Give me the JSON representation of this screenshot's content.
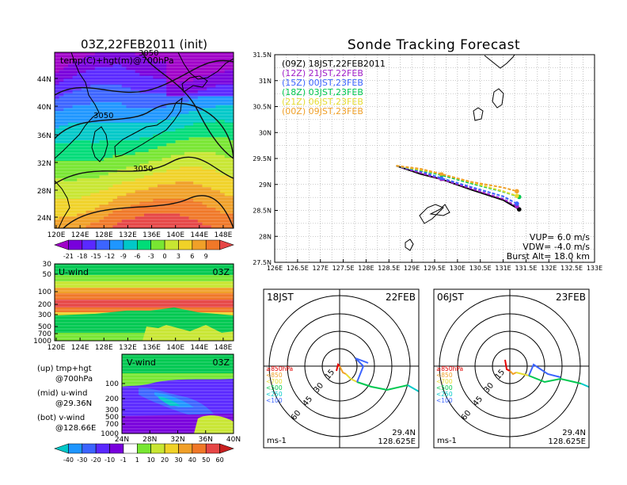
{
  "left": {
    "title": "03Z,22FEB2011 (init)",
    "map_label": "temp(C)+hgt(m)@700hPa",
    "map_height_contours": [
      "3050",
      "3050",
      "3050"
    ],
    "map_lat_ticks": [
      "44N",
      "40N",
      "36N",
      "32N",
      "28N",
      "24N"
    ],
    "map_lon_ticks": [
      "120E",
      "124E",
      "128E",
      "132E",
      "136E",
      "140E",
      "144E",
      "148E"
    ],
    "temp_colorbar": {
      "labels": [
        "-21",
        "-18",
        "-15",
        "-12",
        "-9",
        "-6",
        "-3",
        "0",
        "3",
        "6",
        "9"
      ],
      "colors": [
        "#a000c8",
        "#7800dc",
        "#5a28ff",
        "#3c64ff",
        "#1e96ff",
        "#00c8c8",
        "#00dc78",
        "#78e632",
        "#c8e632",
        "#f0d228",
        "#f0a028",
        "#f07828",
        "#e64646"
      ]
    },
    "uwind": {
      "label": "U-wind",
      "time": "03Z",
      "y_ticks": [
        "30",
        "50",
        "100",
        "200",
        "300",
        "500",
        "700",
        "1000"
      ],
      "x_ticks": [
        "120E",
        "124E",
        "128E",
        "132E",
        "136E",
        "140E",
        "144E",
        "148E"
      ]
    },
    "vwind": {
      "label": "V-wind",
      "time": "03Z",
      "y_ticks": [
        "100",
        "200",
        "300",
        "500",
        "700",
        "1000"
      ],
      "x_ticks": [
        "24N",
        "28N",
        "32N",
        "36N",
        "40N"
      ]
    },
    "notes": {
      "up_1": "(up) tmp+hgt",
      "up_2": "@700hPa",
      "mid_1": "(mid) u-wind",
      "mid_2": "@29.36N",
      "bot_1": "(bot) v-wind",
      "bot_2": "@128.66E"
    },
    "wind_colorbar": {
      "labels": [
        "-40",
        "-30",
        "-20",
        "-10",
        "-1",
        "1",
        "10",
        "20",
        "30",
        "40",
        "50",
        "60"
      ],
      "colors": [
        "#00c8c8",
        "#1e96ff",
        "#3c64ff",
        "#5a28ff",
        "#7800dc",
        "#ffffff",
        "#78e632",
        "#c8e632",
        "#f0d228",
        "#f0a028",
        "#f07828",
        "#e64646",
        "#c81e1e"
      ]
    }
  },
  "tracking": {
    "title": "Sonde Tracking Forecast",
    "legend": [
      {
        "label": "(09Z) 18JST,22FEB2011",
        "color": "#000000"
      },
      {
        "label": "(12Z) 21JST,22FEB",
        "color": "#a020c8"
      },
      {
        "label": "(15Z) 00JST,23FEB",
        "color": "#3c64ff"
      },
      {
        "label": "(18Z) 03JST,23FEB",
        "color": "#00c850"
      },
      {
        "label": "(21Z) 06JST,23FEB",
        "color": "#e6dc32"
      },
      {
        "label": "(00Z) 09JST,23FEB",
        "color": "#f0a028"
      }
    ],
    "lat_ticks": [
      "31.5N",
      "31N",
      "30.5N",
      "30N",
      "29.5N",
      "29N",
      "28.5N",
      "28N",
      "27.5N"
    ],
    "lon_ticks": [
      "126E",
      "126.5E",
      "127E",
      "127.5E",
      "128E",
      "128.5E",
      "129E",
      "129.5E",
      "130E",
      "130.5E",
      "131E",
      "131.5E",
      "132E",
      "132.5E",
      "133E"
    ],
    "params": {
      "vup": "VUP= 6.0 m/s",
      "vdw": "VDW= -4.0 m/s",
      "burst": "Burst Alt= 18.0 km"
    }
  },
  "chart_data": {
    "type": "line",
    "xlabel": "",
    "ylabel": "",
    "xlim": [
      126,
      133
    ],
    "ylim": [
      27.5,
      31.5
    ],
    "series": [
      {
        "name": "(09Z) 18JST,22FEB2011",
        "points": [
          [
            128.66,
            29.36
          ],
          [
            129.2,
            29.2
          ],
          [
            129.65,
            29.1
          ],
          [
            130.3,
            28.9
          ],
          [
            131.0,
            28.7
          ],
          [
            131.35,
            28.52
          ]
        ]
      },
      {
        "name": "(12Z) 21JST,22FEB",
        "points": [
          [
            128.66,
            29.36
          ],
          [
            129.2,
            29.22
          ],
          [
            129.65,
            29.1
          ],
          [
            130.3,
            28.92
          ],
          [
            131.0,
            28.72
          ],
          [
            131.3,
            28.58
          ]
        ]
      },
      {
        "name": "(15Z) 00JST,23FEB",
        "points": [
          [
            128.66,
            29.36
          ],
          [
            129.2,
            29.25
          ],
          [
            129.65,
            29.12
          ],
          [
            130.3,
            28.95
          ],
          [
            131.0,
            28.77
          ],
          [
            131.3,
            28.63
          ]
        ]
      },
      {
        "name": "(18Z) 03JST,23FEB",
        "points": [
          [
            128.66,
            29.36
          ],
          [
            129.2,
            29.27
          ],
          [
            129.65,
            29.18
          ],
          [
            130.3,
            29.02
          ],
          [
            131.0,
            28.86
          ],
          [
            131.35,
            28.76
          ]
        ]
      },
      {
        "name": "(21Z) 06JST,23FEB",
        "points": [
          [
            128.66,
            29.36
          ],
          [
            129.2,
            29.28
          ],
          [
            129.65,
            29.2
          ],
          [
            130.3,
            29.04
          ],
          [
            131.0,
            28.87
          ],
          [
            131.3,
            28.78
          ]
        ]
      },
      {
        "name": "(00Z) 09JST,23FEB",
        "points": [
          [
            128.66,
            29.36
          ],
          [
            129.2,
            29.3
          ],
          [
            129.65,
            29.2
          ],
          [
            130.3,
            29.05
          ],
          [
            131.0,
            28.94
          ],
          [
            131.3,
            28.87
          ]
        ]
      }
    ]
  },
  "hodographs": [
    {
      "time_label": "18JST",
      "date_label": "22FEB",
      "level_labels": [
        "≥850hPa",
        "<850",
        "<700",
        "<500",
        "<250",
        "<100"
      ],
      "level_colors": [
        "#e60000",
        "#f0a028",
        "#e6dc32",
        "#00c850",
        "#00c8c8",
        "#3c64ff"
      ],
      "ring_labels": [
        "15",
        "30",
        "45",
        "60"
      ],
      "unit": "ms-1",
      "loc_1": "29.4N",
      "loc_2": "128.625E"
    },
    {
      "time_label": "06JST",
      "date_label": "23FEB",
      "level_labels": [
        "≥850hPa",
        "<850",
        "<700",
        "<500",
        "<250",
        "<100"
      ],
      "level_colors": [
        "#e60000",
        "#f0a028",
        "#e6dc32",
        "#00c850",
        "#00c8c8",
        "#3c64ff"
      ],
      "ring_labels": [
        "15",
        "30",
        "45",
        "60"
      ],
      "unit": "ms-1",
      "loc_1": "29.4N",
      "loc_2": "128.625E"
    }
  ]
}
